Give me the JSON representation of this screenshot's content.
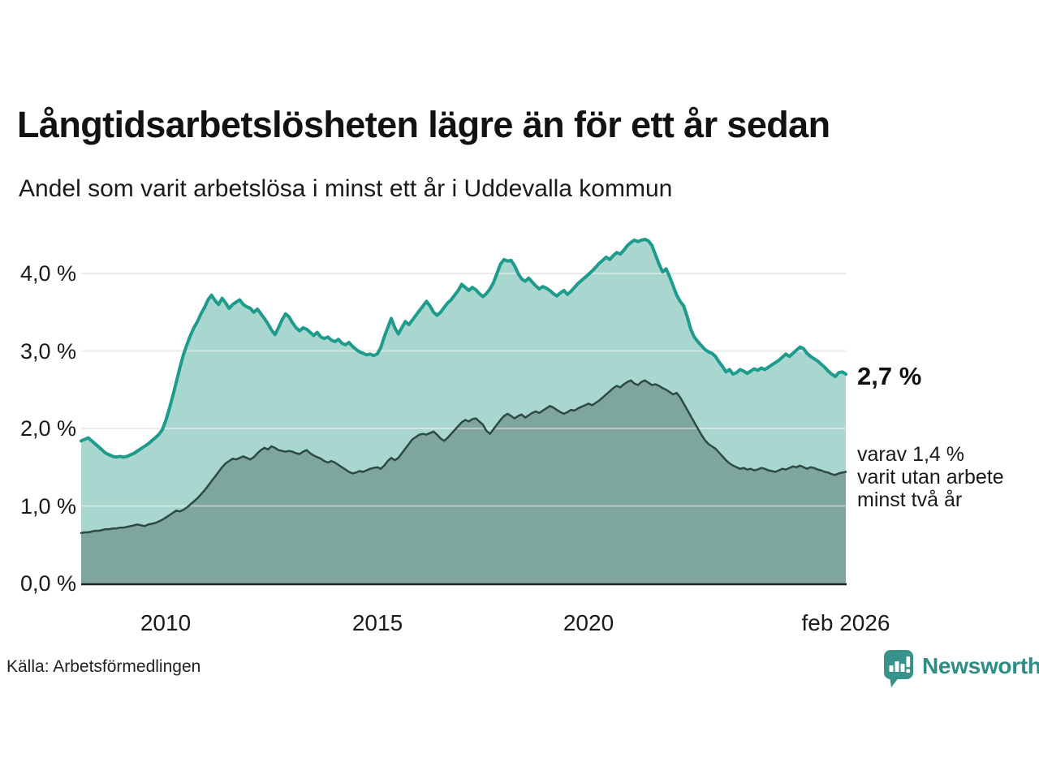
{
  "header": {
    "title": "Långtidsarbetslösheten lägre än för ett år sedan",
    "subtitle": "Andel som varit arbetslösa i minst ett år i Uddevalla kommun"
  },
  "chart_data": {
    "type": "area",
    "title": "Långtidsarbetslösheten lägre än för ett år sedan",
    "subtitle": "Andel som varit arbetslösa i minst ett år i Uddevalla kommun",
    "unit": "%",
    "interval": "monthly",
    "x_start": "2008-01",
    "x_end": "2026-02",
    "ylim": [
      0,
      4.5
    ],
    "grid": true,
    "yticks": [
      {
        "value": 0,
        "label": "0,0 %"
      },
      {
        "value": 1,
        "label": "1,0 %"
      },
      {
        "value": 2,
        "label": "2,0 %"
      },
      {
        "value": 3,
        "label": "3,0 %"
      },
      {
        "value": 4,
        "label": "4,0 %"
      }
    ],
    "xticks": [
      {
        "year": 2010.0,
        "label": "2010"
      },
      {
        "year": 2015.0,
        "label": "2015"
      },
      {
        "year": 2020.0,
        "label": "2020"
      },
      {
        "year": 2026.08,
        "label": "feb 2026"
      }
    ],
    "series": [
      {
        "name": "Andel som varit arbetslösa i minst ett år",
        "line_color": "#1d9b8c",
        "fill_color": "#a9d6cf",
        "end_value_label": "2,7 %",
        "values": [
          1.84,
          1.86,
          1.88,
          1.84,
          1.8,
          1.76,
          1.72,
          1.68,
          1.66,
          1.64,
          1.63,
          1.64,
          1.63,
          1.64,
          1.66,
          1.68,
          1.71,
          1.74,
          1.77,
          1.8,
          1.84,
          1.88,
          1.92,
          1.98,
          2.1,
          2.25,
          2.42,
          2.6,
          2.78,
          2.95,
          3.08,
          3.2,
          3.3,
          3.38,
          3.48,
          3.56,
          3.66,
          3.72,
          3.65,
          3.6,
          3.68,
          3.62,
          3.55,
          3.6,
          3.63,
          3.66,
          3.6,
          3.57,
          3.55,
          3.5,
          3.54,
          3.48,
          3.42,
          3.35,
          3.27,
          3.21,
          3.3,
          3.4,
          3.48,
          3.44,
          3.36,
          3.3,
          3.26,
          3.3,
          3.28,
          3.24,
          3.2,
          3.24,
          3.18,
          3.16,
          3.18,
          3.14,
          3.12,
          3.15,
          3.1,
          3.08,
          3.11,
          3.06,
          3.02,
          2.99,
          2.97,
          2.95,
          2.96,
          2.94,
          2.96,
          3.04,
          3.18,
          3.3,
          3.42,
          3.3,
          3.22,
          3.3,
          3.38,
          3.34,
          3.4,
          3.46,
          3.52,
          3.58,
          3.64,
          3.58,
          3.5,
          3.46,
          3.5,
          3.56,
          3.62,
          3.66,
          3.72,
          3.78,
          3.86,
          3.82,
          3.78,
          3.82,
          3.79,
          3.74,
          3.7,
          3.74,
          3.8,
          3.88,
          4.0,
          4.12,
          4.18,
          4.16,
          4.17,
          4.1,
          4.0,
          3.93,
          3.9,
          3.94,
          3.89,
          3.84,
          3.8,
          3.83,
          3.81,
          3.78,
          3.74,
          3.71,
          3.75,
          3.78,
          3.73,
          3.77,
          3.82,
          3.87,
          3.91,
          3.95,
          3.99,
          4.03,
          4.08,
          4.13,
          4.17,
          4.21,
          4.18,
          4.23,
          4.27,
          4.25,
          4.3,
          4.36,
          4.4,
          4.43,
          4.41,
          4.43,
          4.44,
          4.42,
          4.36,
          4.24,
          4.12,
          4.02,
          4.06,
          3.96,
          3.84,
          3.72,
          3.64,
          3.58,
          3.44,
          3.28,
          3.18,
          3.12,
          3.07,
          3.02,
          2.99,
          2.97,
          2.93,
          2.86,
          2.8,
          2.73,
          2.76,
          2.7,
          2.72,
          2.76,
          2.74,
          2.71,
          2.74,
          2.77,
          2.75,
          2.78,
          2.76,
          2.79,
          2.82,
          2.85,
          2.88,
          2.92,
          2.96,
          2.93,
          2.97,
          3.01,
          3.05,
          3.03,
          2.97,
          2.93,
          2.9,
          2.87,
          2.83,
          2.79,
          2.74,
          2.7,
          2.67,
          2.72,
          2.73,
          2.7
        ]
      },
      {
        "name": "varav utan arbete minst två år",
        "line_color": "#2c4a46",
        "fill_color": "#7ea69e",
        "end_value_label": "1,4 %",
        "values": [
          0.65,
          0.66,
          0.66,
          0.67,
          0.68,
          0.68,
          0.69,
          0.7,
          0.7,
          0.71,
          0.71,
          0.72,
          0.72,
          0.73,
          0.74,
          0.75,
          0.76,
          0.75,
          0.74,
          0.76,
          0.77,
          0.78,
          0.8,
          0.82,
          0.85,
          0.88,
          0.91,
          0.94,
          0.93,
          0.95,
          0.98,
          1.02,
          1.06,
          1.1,
          1.15,
          1.2,
          1.26,
          1.32,
          1.38,
          1.44,
          1.5,
          1.55,
          1.58,
          1.61,
          1.6,
          1.62,
          1.64,
          1.62,
          1.6,
          1.63,
          1.68,
          1.72,
          1.75,
          1.73,
          1.77,
          1.75,
          1.72,
          1.71,
          1.7,
          1.71,
          1.7,
          1.68,
          1.67,
          1.7,
          1.72,
          1.68,
          1.65,
          1.63,
          1.61,
          1.58,
          1.56,
          1.58,
          1.56,
          1.53,
          1.5,
          1.47,
          1.44,
          1.42,
          1.43,
          1.45,
          1.44,
          1.46,
          1.48,
          1.49,
          1.5,
          1.48,
          1.52,
          1.58,
          1.62,
          1.59,
          1.62,
          1.68,
          1.74,
          1.8,
          1.86,
          1.89,
          1.92,
          1.93,
          1.92,
          1.94,
          1.96,
          1.92,
          1.87,
          1.84,
          1.88,
          1.93,
          1.98,
          2.03,
          2.08,
          2.11,
          2.09,
          2.12,
          2.13,
          2.09,
          2.05,
          1.97,
          1.93,
          1.99,
          2.05,
          2.11,
          2.16,
          2.19,
          2.16,
          2.13,
          2.16,
          2.18,
          2.14,
          2.17,
          2.2,
          2.22,
          2.2,
          2.23,
          2.26,
          2.29,
          2.27,
          2.24,
          2.21,
          2.19,
          2.21,
          2.24,
          2.23,
          2.26,
          2.28,
          2.3,
          2.32,
          2.3,
          2.33,
          2.36,
          2.4,
          2.44,
          2.48,
          2.52,
          2.55,
          2.53,
          2.57,
          2.6,
          2.62,
          2.58,
          2.56,
          2.6,
          2.62,
          2.59,
          2.56,
          2.57,
          2.55,
          2.52,
          2.5,
          2.47,
          2.44,
          2.46,
          2.4,
          2.32,
          2.24,
          2.16,
          2.08,
          2.0,
          1.92,
          1.85,
          1.8,
          1.77,
          1.74,
          1.69,
          1.64,
          1.59,
          1.55,
          1.52,
          1.5,
          1.48,
          1.49,
          1.47,
          1.48,
          1.46,
          1.47,
          1.49,
          1.48,
          1.46,
          1.45,
          1.44,
          1.46,
          1.48,
          1.47,
          1.49,
          1.51,
          1.5,
          1.52,
          1.5,
          1.48,
          1.5,
          1.49,
          1.47,
          1.46,
          1.44,
          1.43,
          1.41,
          1.4,
          1.42,
          1.43,
          1.44
        ]
      }
    ],
    "annotations": {
      "primary": "2,7 %",
      "secondary_lines": [
        "varav 1,4 %",
        "varit utan arbete",
        "minst två år"
      ]
    }
  },
  "footer": {
    "source": "Källa: Arbetsförmedlingen",
    "logo_text": "Newsworthy"
  },
  "colors": {
    "line_1yr": "#1d9b8c",
    "fill_1yr": "#a9d6cf",
    "line_2yr": "#2c4a46",
    "fill_2yr": "#7ea69e",
    "gridline": "#dcdcdc",
    "axis": "#222222",
    "logo_teal": "#38948b",
    "logo_text_teal": "#2e8c85"
  }
}
